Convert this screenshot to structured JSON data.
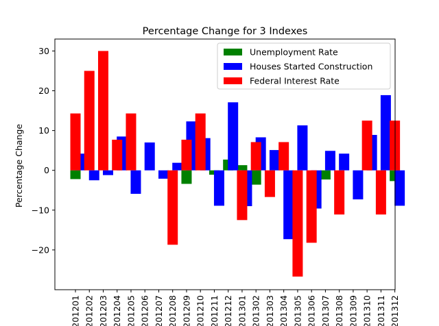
{
  "chart_data": {
    "type": "bar",
    "title": "Percentage Change for 3 Indexes",
    "xlabel": "",
    "ylabel": "Percentage Change",
    "ylim": [
      -30,
      33
    ],
    "yticks": [
      -20,
      -10,
      0,
      10,
      20,
      30
    ],
    "ytick_labels": [
      "−20",
      "−10",
      "0",
      "10",
      "20",
      "30"
    ],
    "grid": false,
    "legend_position": "top-right",
    "categories": [
      "201201",
      "201202",
      "201203",
      "201204",
      "201205",
      "201206",
      "201207",
      "201208",
      "201209",
      "201210",
      "201211",
      "201212",
      "201301",
      "201302",
      "201303",
      "201304",
      "201305",
      "201306",
      "201307",
      "201308",
      "201309",
      "201310",
      "201311",
      "201312"
    ],
    "series": [
      {
        "name": "Unemployment Rate",
        "color": "#008000",
        "values": [
          -2.2,
          0,
          0,
          0,
          0,
          0,
          0,
          0,
          -3.4,
          0,
          -1.1,
          2.7,
          1.3,
          -3.6,
          0,
          0,
          0,
          0,
          -2.3,
          0,
          0,
          0,
          0,
          -2.7
        ]
      },
      {
        "name": "Houses Started Construction",
        "color": "#0000ff",
        "values": [
          4.2,
          -2.5,
          -1.2,
          8.5,
          -5.9,
          7.0,
          -2.1,
          1.9,
          12.3,
          8.1,
          -8.9,
          17.1,
          -9.0,
          8.3,
          5.1,
          -17.3,
          11.3,
          -9.6,
          4.9,
          4.2,
          -7.3,
          8.9,
          18.9,
          -8.9
        ]
      },
      {
        "name": "Federal Interest Rate",
        "color": "#ff0000",
        "values": [
          14.3,
          25.0,
          30.0,
          7.7,
          14.3,
          0,
          0,
          -18.7,
          7.7,
          14.3,
          0,
          0,
          -12.5,
          7.1,
          -6.7,
          7.1,
          -26.7,
          -18.2,
          0,
          -11.1,
          0,
          12.5,
          -11.1,
          12.5
        ]
      }
    ]
  }
}
